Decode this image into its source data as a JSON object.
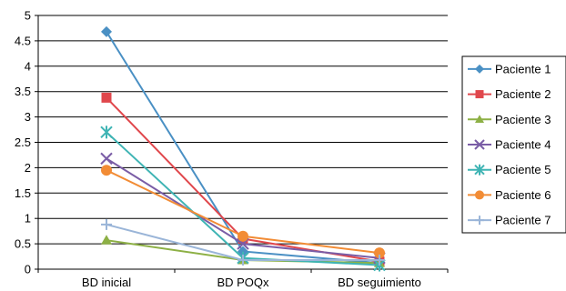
{
  "chart_data": {
    "type": "line",
    "title": "",
    "xlabel": "",
    "ylabel": "",
    "categories": [
      "BD inicial",
      "BD POQx",
      "BD seguimiento"
    ],
    "ylim": [
      0,
      5
    ],
    "y_ticks": [
      "0",
      "0.5",
      "1",
      "1.5",
      "2",
      "2.5",
      "3",
      "3.5",
      "4",
      "4.5",
      "5"
    ],
    "grid": "horizontal",
    "legend_position": "right",
    "series": [
      {
        "name": "Paciente 1",
        "values": [
          4.68,
          0.35,
          0.12
        ],
        "color": "#4a90c4",
        "marker": "diamond"
      },
      {
        "name": "Paciente 2",
        "values": [
          3.38,
          0.6,
          0.15
        ],
        "color": "#e0474c",
        "marker": "square"
      },
      {
        "name": "Paciente 3",
        "values": [
          0.57,
          0.18,
          0.12
        ],
        "color": "#8db045",
        "marker": "triangle"
      },
      {
        "name": "Paciente 4",
        "values": [
          2.18,
          0.5,
          0.22
        ],
        "color": "#7a5da6",
        "marker": "x"
      },
      {
        "name": "Paciente 5",
        "values": [
          2.7,
          0.22,
          0.08
        ],
        "color": "#3fb4b4",
        "marker": "star"
      },
      {
        "name": "Paciente 6",
        "values": [
          1.95,
          0.65,
          0.32
        ],
        "color": "#f28c35",
        "marker": "circle"
      },
      {
        "name": "Paciente 7",
        "values": [
          0.88,
          0.18,
          0.18
        ],
        "color": "#9ab5d8",
        "marker": "plus"
      }
    ]
  }
}
